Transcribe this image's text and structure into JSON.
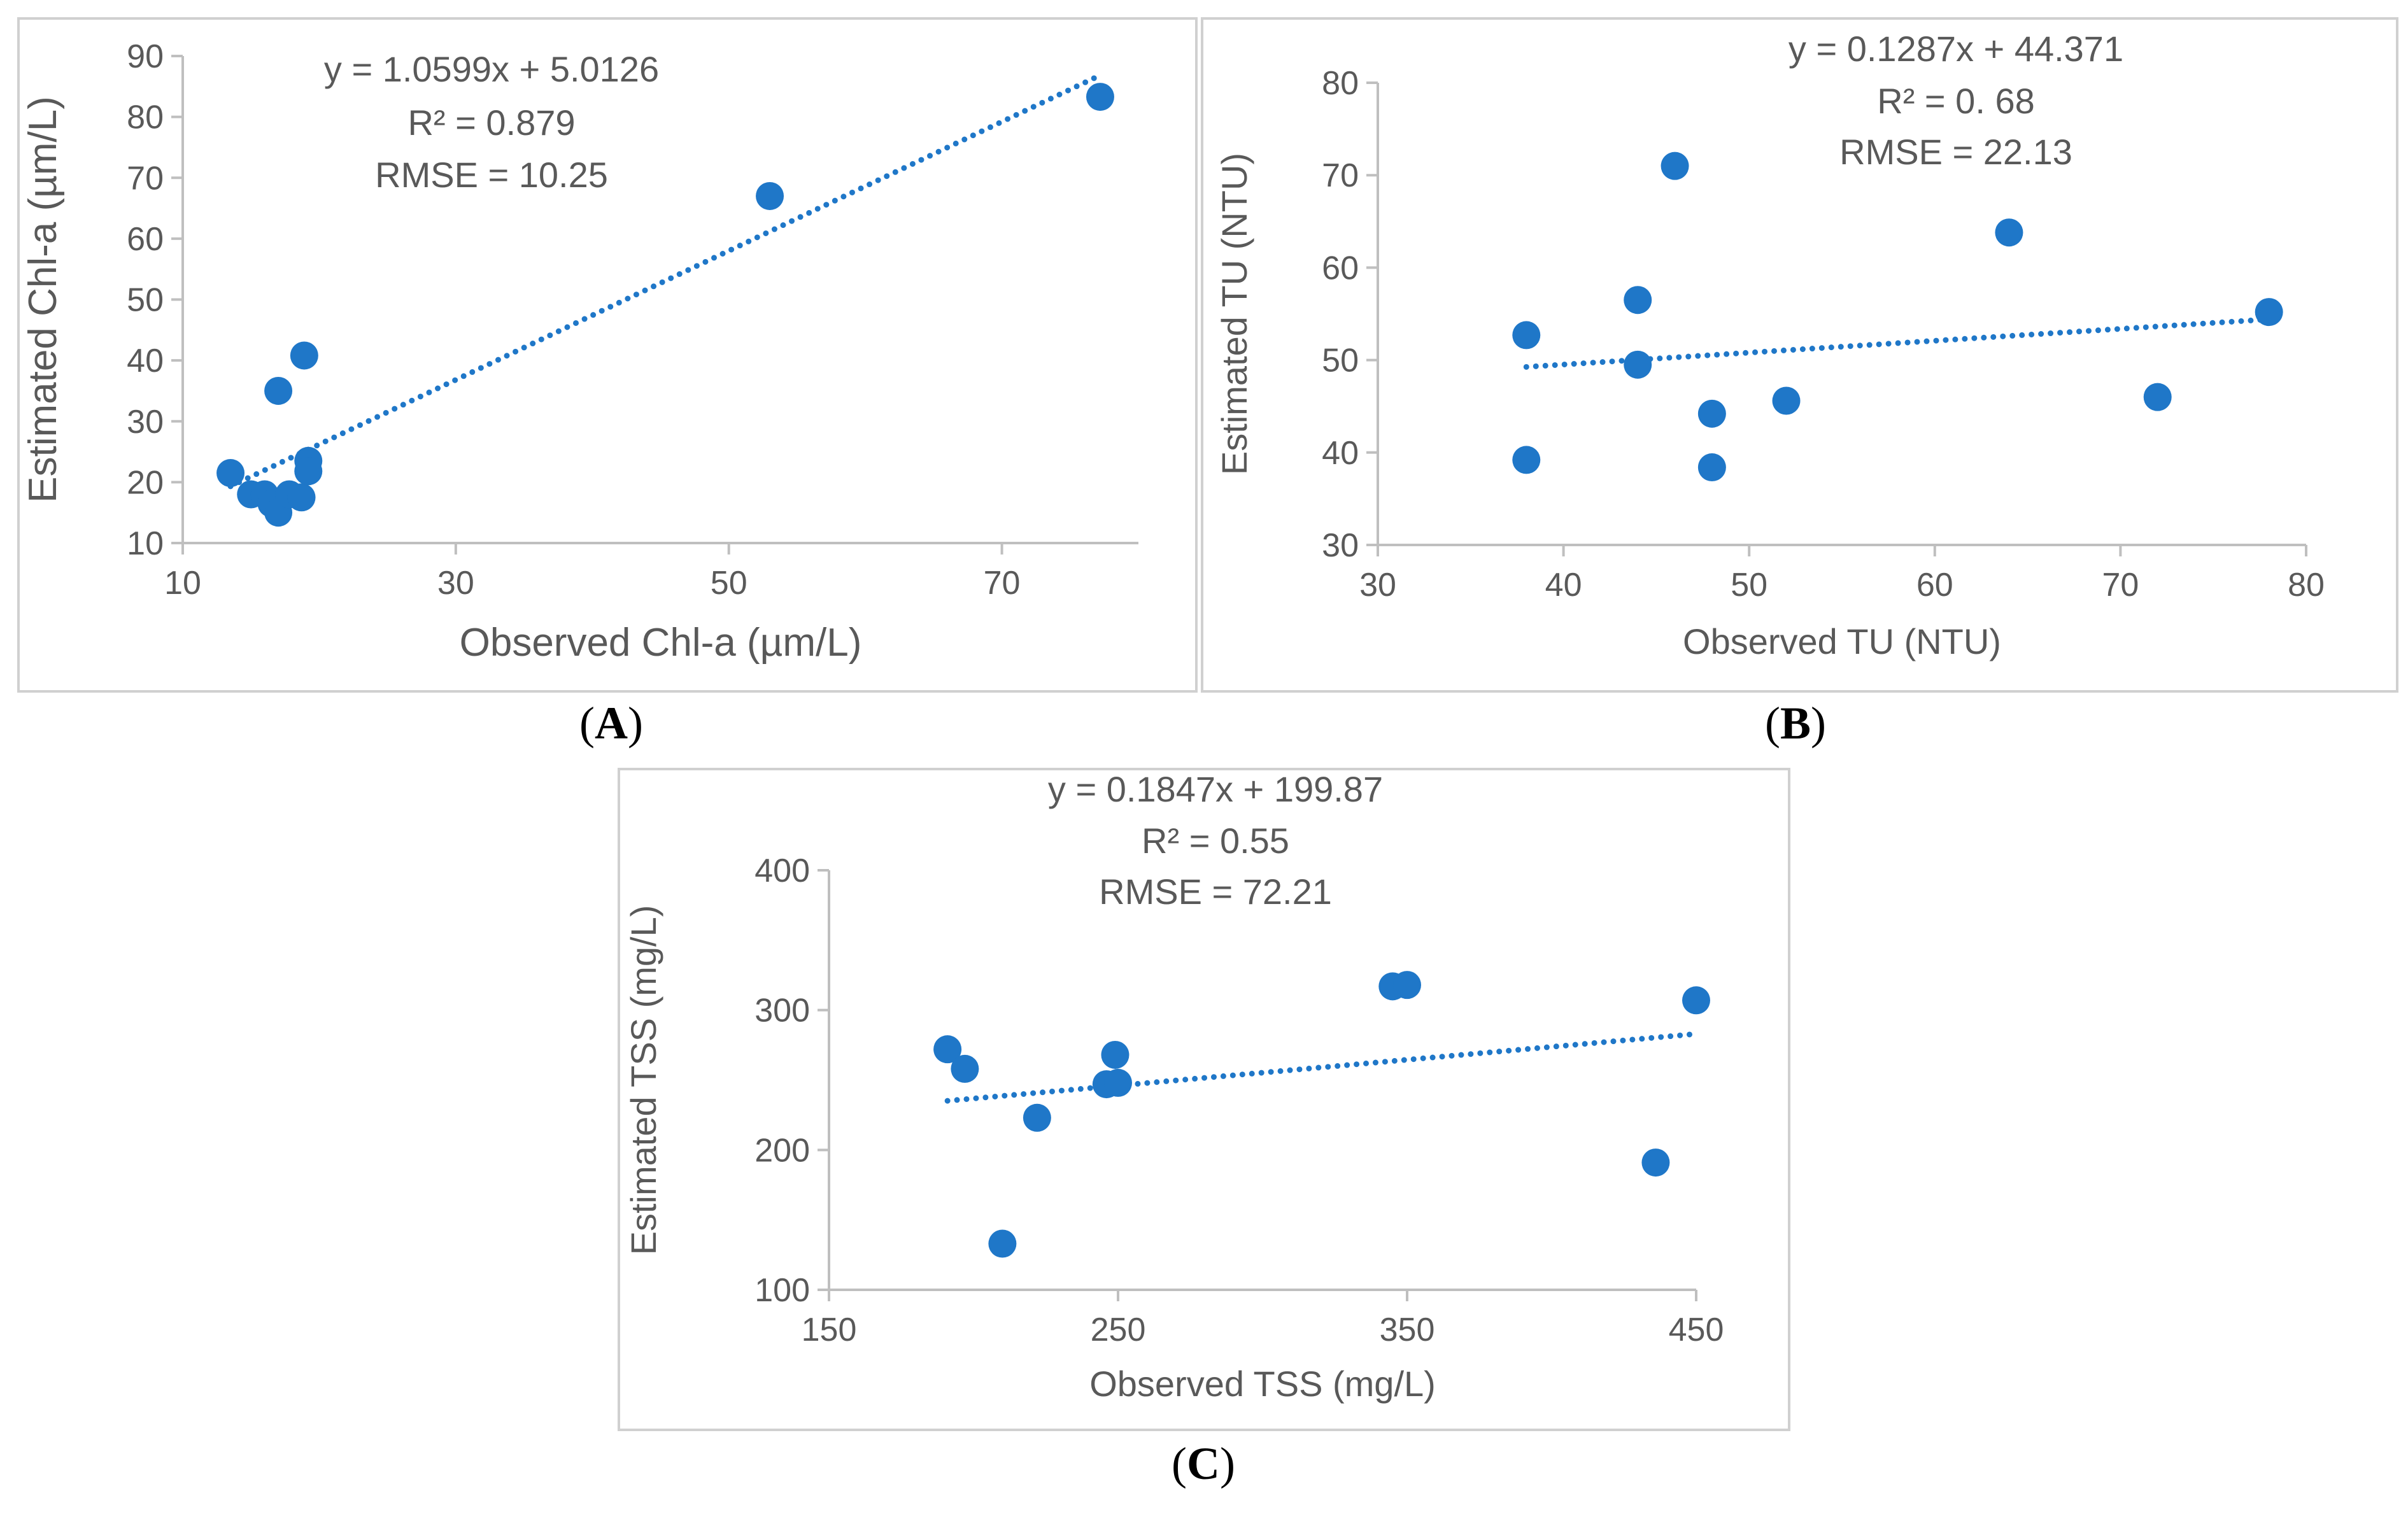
{
  "colors": {
    "marker": "#1f77c8",
    "trendline": "#1f77c8",
    "axis": "#bfbfbf",
    "text": "#595959",
    "border": "#d0d0d0"
  },
  "chart_data": [
    {
      "type": "scatter",
      "panel_label": "A",
      "xlabel": "Observed Chl-a (µm/L)",
      "ylabel": "Estimated Chl-a (µm/L)",
      "xlim": [
        10,
        80
      ],
      "ylim": [
        10,
        90
      ],
      "xticks": [
        10,
        30,
        50,
        70
      ],
      "yticks": [
        10,
        20,
        30,
        40,
        50,
        60,
        70,
        80,
        90
      ],
      "grid": false,
      "equation_lines": [
        "y = 1.0599x + 5.0126",
        "R² = 0.879",
        "RMSE = 10.25"
      ],
      "trendline": {
        "slope": 1.0599,
        "intercept": 5.0126,
        "x_range": [
          13.5,
          77
        ]
      },
      "points": [
        {
          "x": 13.5,
          "y": 21.5
        },
        {
          "x": 15.0,
          "y": 18.0
        },
        {
          "x": 16.0,
          "y": 18.0
        },
        {
          "x": 16.5,
          "y": 16.5
        },
        {
          "x": 17.0,
          "y": 15.0
        },
        {
          "x": 17.0,
          "y": 35.0
        },
        {
          "x": 17.8,
          "y": 18.0
        },
        {
          "x": 18.7,
          "y": 17.5
        },
        {
          "x": 18.9,
          "y": 40.8
        },
        {
          "x": 19.2,
          "y": 23.5
        },
        {
          "x": 19.2,
          "y": 21.8
        },
        {
          "x": 53.0,
          "y": 67.0
        },
        {
          "x": 77.2,
          "y": 83.3
        }
      ]
    },
    {
      "type": "scatter",
      "panel_label": "B",
      "xlabel": "Observed TU (NTU)",
      "ylabel": "Estimated TU (NTU)",
      "xlim": [
        30,
        80
      ],
      "ylim": [
        30,
        80
      ],
      "xticks": [
        30,
        40,
        50,
        60,
        70,
        80
      ],
      "yticks": [
        30,
        40,
        50,
        60,
        70,
        80
      ],
      "grid": false,
      "equation_lines": [
        "y = 0.1287x + 44.371",
        "R² = 0. 68",
        "RMSE = 22.13"
      ],
      "trendline": {
        "slope": 0.1287,
        "intercept": 44.371,
        "x_range": [
          38,
          78
        ]
      },
      "points": [
        {
          "x": 38,
          "y": 52.7
        },
        {
          "x": 38,
          "y": 39.2
        },
        {
          "x": 44,
          "y": 56.5
        },
        {
          "x": 44,
          "y": 49.5
        },
        {
          "x": 46,
          "y": 71.0
        },
        {
          "x": 48,
          "y": 44.2
        },
        {
          "x": 48,
          "y": 38.4
        },
        {
          "x": 52,
          "y": 45.6
        },
        {
          "x": 64,
          "y": 63.8
        },
        {
          "x": 72,
          "y": 46.0
        },
        {
          "x": 78,
          "y": 55.2
        }
      ]
    },
    {
      "type": "scatter",
      "panel_label": "C",
      "xlabel": "Observed TSS (mg/L)",
      "ylabel": "Estimated TSS (mg/L)",
      "xlim": [
        150,
        450
      ],
      "ylim": [
        100,
        400
      ],
      "xticks": [
        150,
        250,
        350,
        450
      ],
      "yticks": [
        100,
        200,
        300,
        400
      ],
      "grid": false,
      "equation_lines": [
        "y = 0.1847x + 199.87",
        "R² = 0.55",
        "RMSE = 72.21"
      ],
      "trendline": {
        "slope": 0.1847,
        "intercept": 199.87,
        "x_range": [
          191,
          450
        ]
      },
      "points": [
        {
          "x": 191,
          "y": 272
        },
        {
          "x": 197,
          "y": 258
        },
        {
          "x": 210,
          "y": 133
        },
        {
          "x": 222,
          "y": 223
        },
        {
          "x": 246,
          "y": 247
        },
        {
          "x": 250,
          "y": 248
        },
        {
          "x": 249,
          "y": 268
        },
        {
          "x": 345,
          "y": 317
        },
        {
          "x": 350,
          "y": 318
        },
        {
          "x": 436,
          "y": 191
        },
        {
          "x": 450,
          "y": 307
        }
      ]
    }
  ]
}
